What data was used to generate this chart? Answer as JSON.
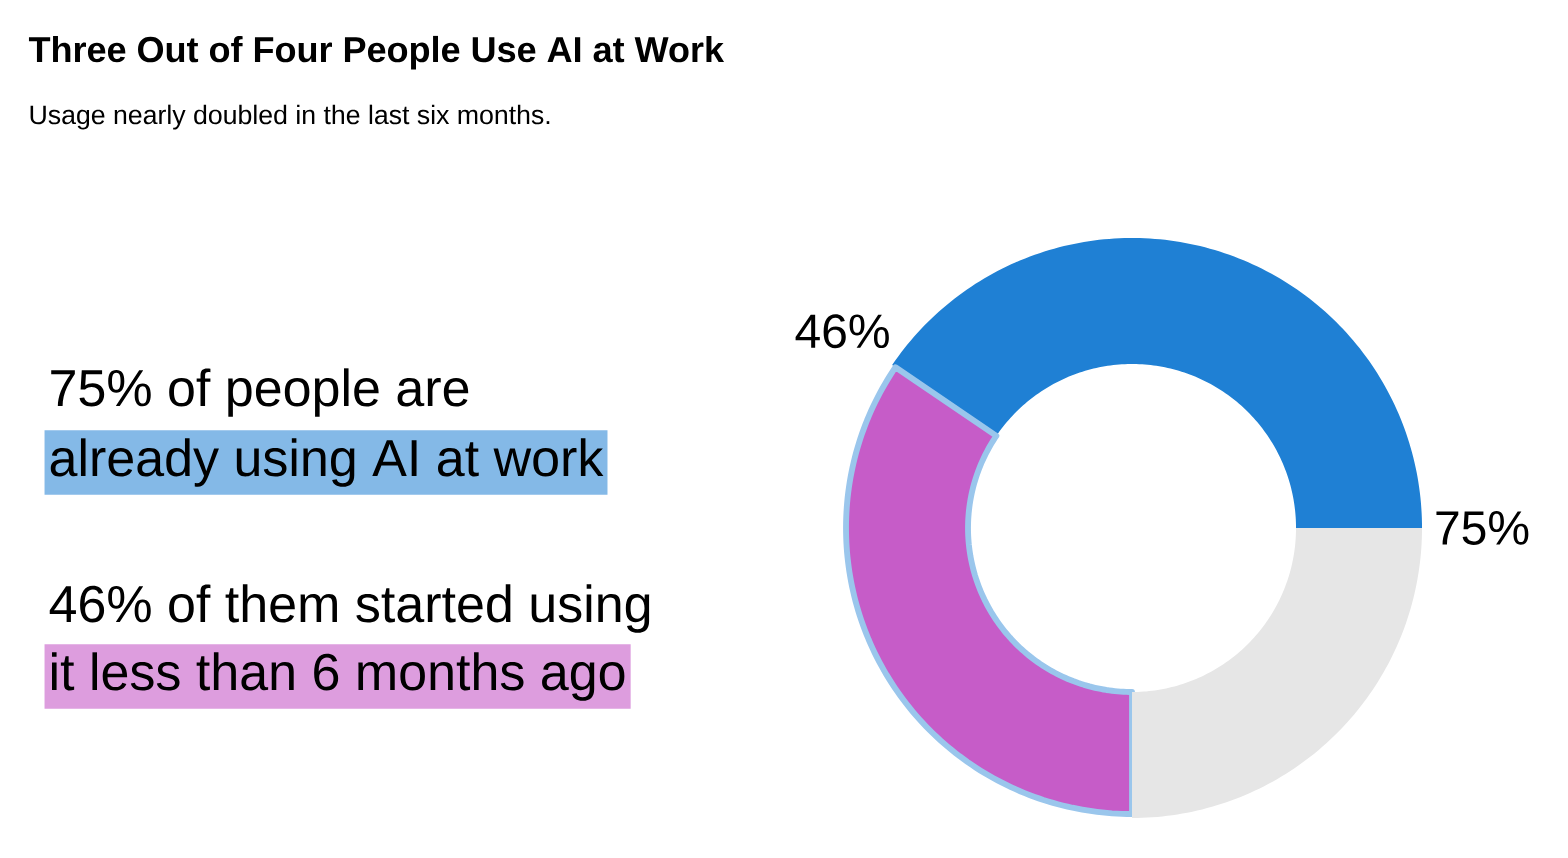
{
  "chart_data": {
    "type": "donut",
    "title": "Three Out of Four People Use AI at Work",
    "subtitle": "Usage nearly doubled in the last six months.",
    "categories": [
      null,
      null,
      null
    ],
    "values": [
      40.5,
      34.5,
      25
    ],
    "colors": [
      "#1f80d4",
      "#c65cc8",
      "#e6e6e6"
    ],
    "annotations": [
      "75%",
      "46%",
      "75% of people are",
      "already using AI at work",
      "46% of them started using",
      "it less than 6 months ago"
    ]
  }
}
